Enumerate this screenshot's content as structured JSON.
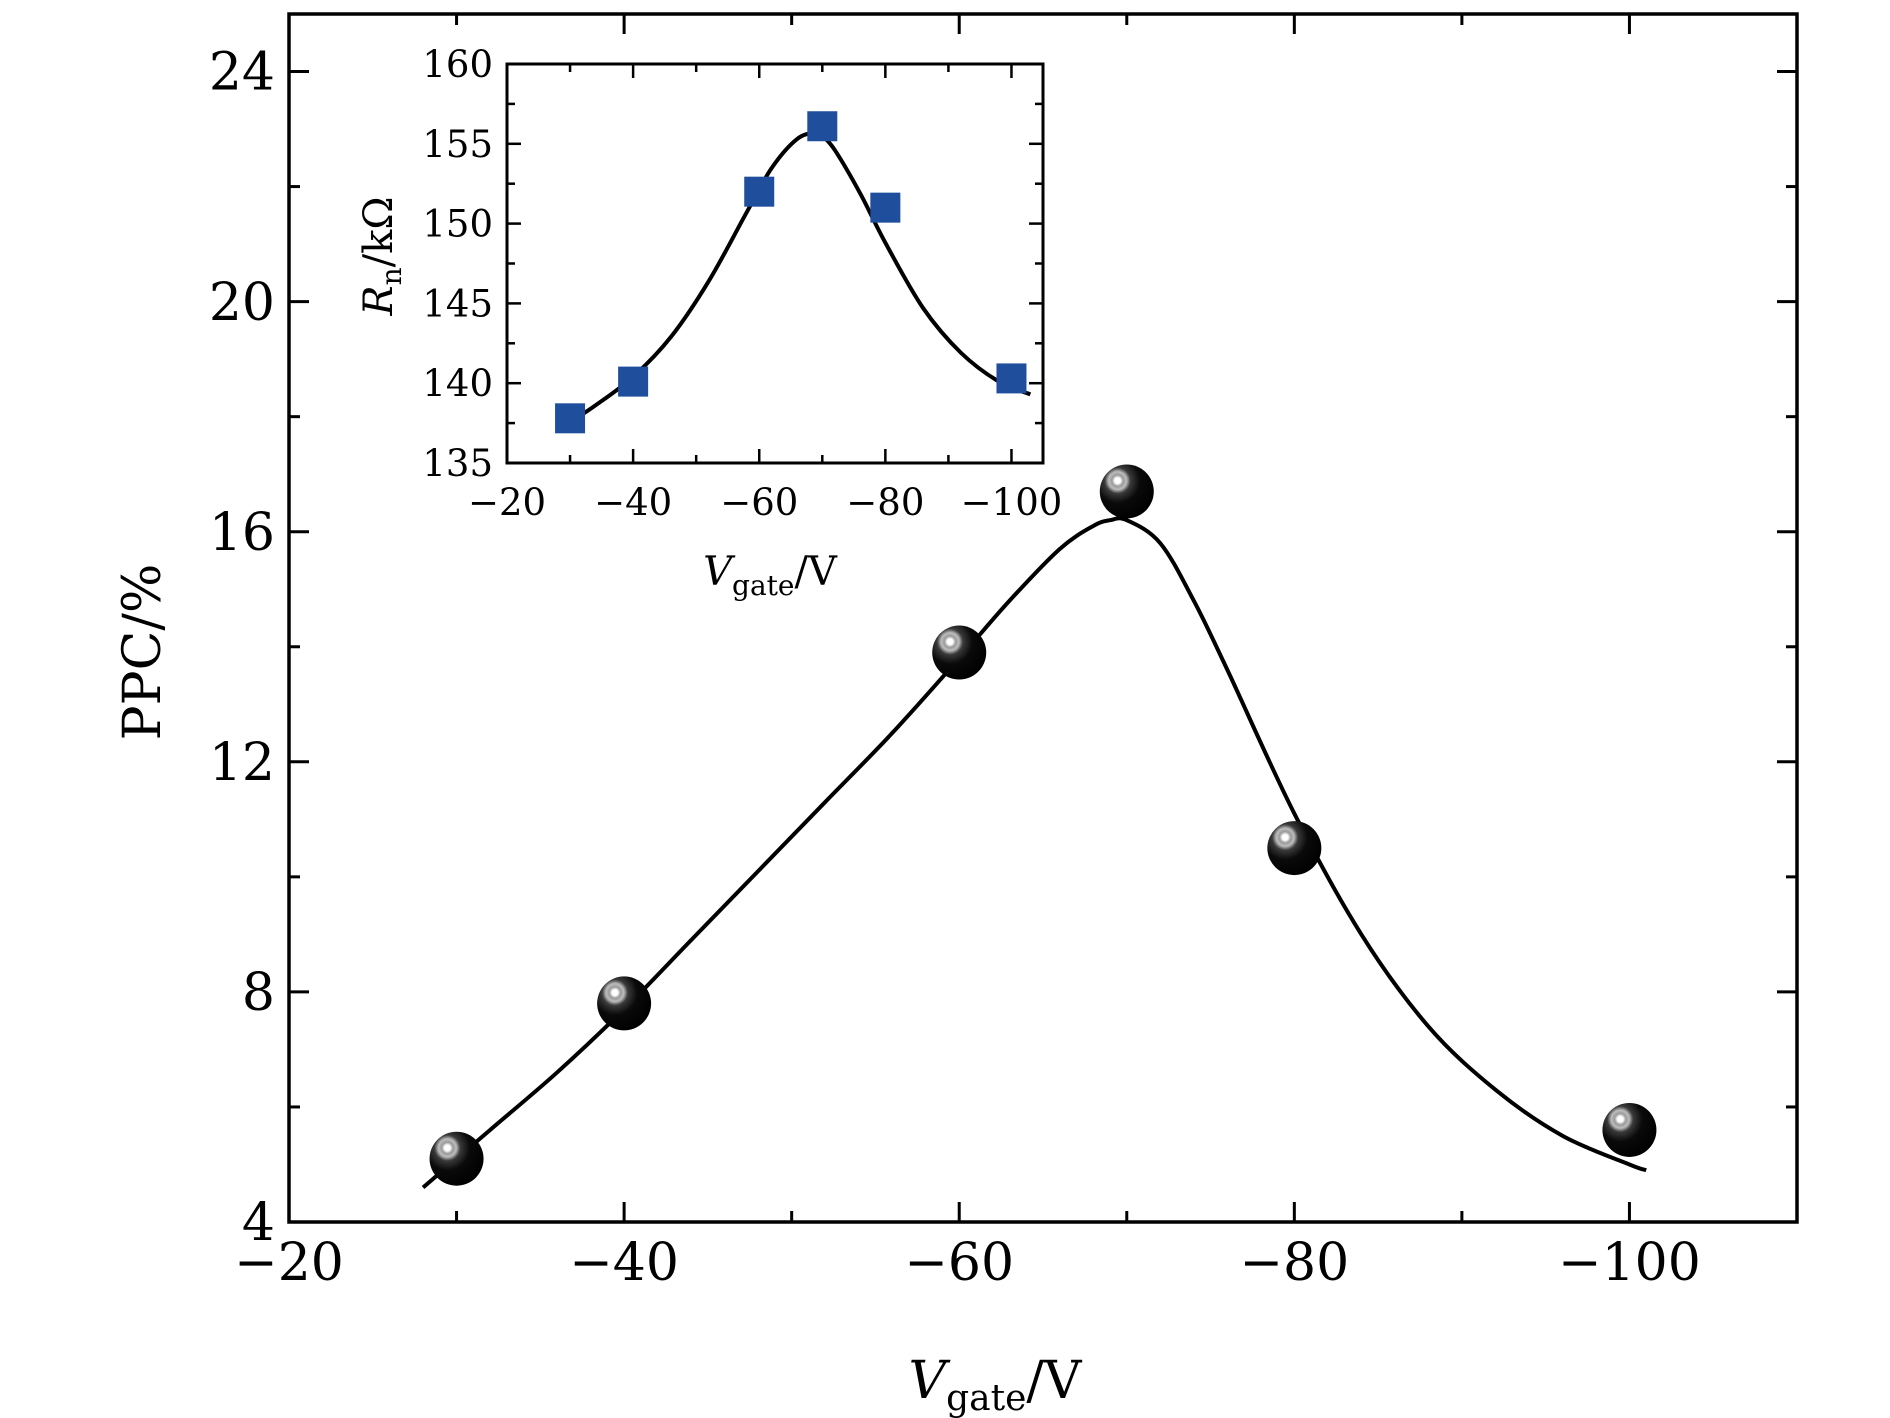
{
  "chart_data": [
    {
      "id": "main",
      "type": "scatter",
      "xlabel": {
        "main": "V",
        "sub": "gate",
        "unit": "/V"
      },
      "ylabel": "PPC/%",
      "xlim": [
        -20,
        -110
      ],
      "ylim": [
        4,
        25
      ],
      "x_ticks": [
        -20,
        -40,
        -60,
        -80,
        -100
      ],
      "x_tick_labels": [
        "−20",
        "−40",
        "−60",
        "−80",
        "−100"
      ],
      "y_ticks": [
        4,
        8,
        12,
        16,
        20,
        24
      ],
      "y_tick_labels": [
        "4",
        "8",
        "12",
        "16",
        "20",
        "24"
      ],
      "x_minor_ticks": [
        -30,
        -50,
        -70,
        -90
      ],
      "y_minor_ticks": [
        6,
        10,
        14,
        18,
        22
      ],
      "marker": "sphere",
      "marker_color": "#000000",
      "series": [
        {
          "x": [
            -30,
            -40,
            -60,
            -70,
            -80,
            -100
          ],
          "y": [
            5.1,
            7.8,
            13.9,
            16.7,
            10.5,
            5.6
          ]
        }
      ],
      "fit_curve": {
        "x": [
          -28,
          -32,
          -36,
          -40,
          -44,
          -48,
          -52,
          -56,
          -60,
          -63,
          -66,
          -68,
          -69,
          -70,
          -72,
          -74,
          -76,
          -80,
          -84,
          -88,
          -92,
          -96,
          -100,
          -101
        ],
        "y": [
          4.6,
          5.6,
          6.6,
          7.7,
          8.9,
          10.1,
          11.3,
          12.5,
          13.8,
          14.8,
          15.7,
          16.1,
          16.2,
          16.2,
          15.8,
          14.8,
          13.6,
          11.1,
          9.0,
          7.4,
          6.3,
          5.5,
          5.0,
          4.9
        ]
      }
    },
    {
      "id": "inset",
      "type": "scatter",
      "xlabel": {
        "main": "V",
        "sub": "gate",
        "unit": "/V"
      },
      "ylabel": {
        "main": "R",
        "sub": "n",
        "unit": "/kΩ"
      },
      "xlim": [
        -20,
        -105
      ],
      "ylim": [
        135,
        160
      ],
      "x_ticks": [
        -20,
        -40,
        -60,
        -80,
        -100
      ],
      "x_tick_labels": [
        "−20",
        "−40",
        "−60",
        "−80",
        "−100"
      ],
      "y_ticks": [
        135,
        140,
        145,
        150,
        155,
        160
      ],
      "y_tick_labels": [
        "135",
        "140",
        "145",
        "150",
        "155",
        "160"
      ],
      "x_minor_ticks": [
        -30,
        -50,
        -70,
        -90
      ],
      "y_minor_ticks": [
        137.5,
        142.5,
        147.5,
        152.5,
        157.5
      ],
      "marker": "square",
      "marker_color": "#1f4e9c",
      "series": [
        {
          "x": [
            -30,
            -40,
            -60,
            -70,
            -80,
            -100
          ],
          "y": [
            137.8,
            140.1,
            152.0,
            156.1,
            151.0,
            140.3
          ]
        }
      ],
      "fit_curve": {
        "x": [
          -29,
          -34,
          -40,
          -46,
          -52,
          -58,
          -62,
          -66,
          -69,
          -70,
          -72,
          -76,
          -80,
          -86,
          -92,
          -98,
          -103
        ],
        "y": [
          137.3,
          138.6,
          140.4,
          142.9,
          146.4,
          150.7,
          153.5,
          155.3,
          155.7,
          155.5,
          154.6,
          151.9,
          148.8,
          144.7,
          141.9,
          140.1,
          139.3
        ]
      }
    }
  ]
}
